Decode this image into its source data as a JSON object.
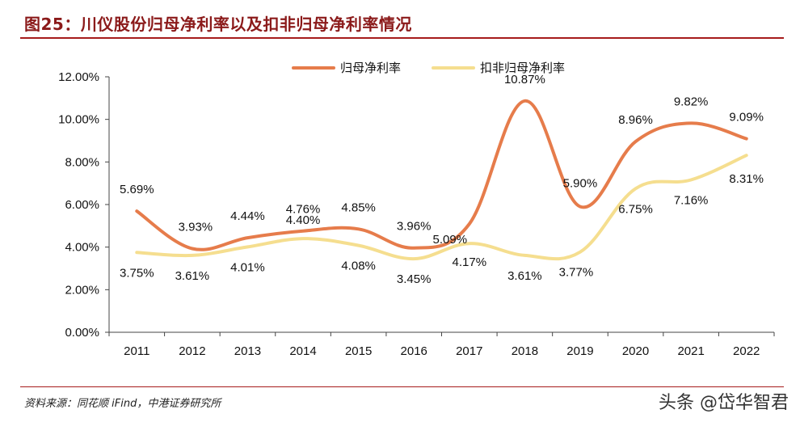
{
  "title": "图25：川仪股份归母净利率以及扣非归母净利率情况",
  "source": "资料来源：同花顺 iFind，中港证券研究所",
  "watermark": "头条 @岱华智君",
  "colors": {
    "series1": "#e67c4b",
    "series2": "#f5de8f",
    "title": "#8b1a1a",
    "rule": "#a61c1c"
  },
  "chart_data": {
    "type": "line",
    "title": "川仪股份归母净利率以及扣非归母净利率情况",
    "xlabel": "",
    "ylabel": "",
    "ylim": [
      0,
      12
    ],
    "yticks": [
      "0.00%",
      "2.00%",
      "4.00%",
      "6.00%",
      "8.00%",
      "10.00%",
      "12.00%"
    ],
    "categories": [
      "2011",
      "2012",
      "2013",
      "2014",
      "2015",
      "2016",
      "2017",
      "2018",
      "2019",
      "2020",
      "2021",
      "2022"
    ],
    "legend_position": "top-center",
    "series": [
      {
        "name": "归母净利率",
        "values": [
          5.69,
          3.93,
          4.44,
          4.76,
          4.85,
          3.96,
          5.09,
          10.87,
          5.9,
          8.96,
          9.82,
          9.09
        ],
        "labels": [
          "5.69%",
          "3.93%",
          "4.44%",
          "4.76%",
          "4.85%",
          "3.96%",
          "5.09%",
          "10.87%",
          "5.90%",
          "8.96%",
          "9.82%",
          "9.09%"
        ]
      },
      {
        "name": "扣非归母净利率",
        "values": [
          3.75,
          3.61,
          4.01,
          4.4,
          4.08,
          3.45,
          4.17,
          3.61,
          3.77,
          6.75,
          7.16,
          8.31
        ],
        "labels": [
          "3.75%",
          "3.61%",
          "4.01%",
          "4.40%",
          "4.08%",
          "3.45%",
          "4.17%",
          "3.61%",
          "3.77%",
          "6.75%",
          "7.16%",
          "8.31%"
        ]
      }
    ]
  }
}
